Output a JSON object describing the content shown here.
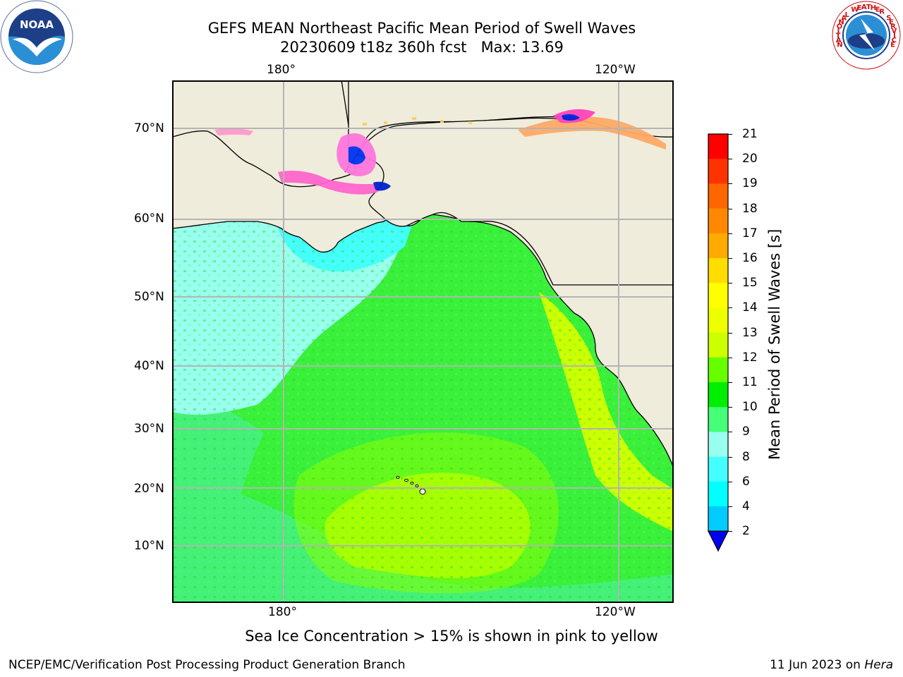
{
  "title": {
    "line1": "GEFS MEAN Northeast Pacific Mean Period of Swell Waves",
    "line2": "20230609 t18z 360h fcst   Max: 13.69"
  },
  "map": {
    "lon_labels_top": [
      "180°",
      "120°W"
    ],
    "lon_labels_bottom": [
      "180°",
      "120°W"
    ],
    "lat_labels": [
      "70°N",
      "60°N",
      "50°N",
      "40°N",
      "30°N",
      "20°N",
      "10°N"
    ],
    "grid": true,
    "land_color": "#efecdc",
    "ocean_dominant_color": "#33ee33"
  },
  "colorbar": {
    "label": "Mean Period of Swell Waves [s]",
    "ticks": [
      "21",
      "20",
      "19",
      "18",
      "17",
      "16",
      "15",
      "14",
      "13",
      "12",
      "11",
      "10",
      "9",
      "8",
      "6",
      "4",
      "2"
    ],
    "colors": [
      "#ff0000",
      "#ff3300",
      "#ff6600",
      "#ff8800",
      "#ffaa00",
      "#ffdd00",
      "#ffff00",
      "#eeff00",
      "#ccff00",
      "#66ff00",
      "#00ee00",
      "#44ff77",
      "#99ffee",
      "#44ffff",
      "#00ffff",
      "#00ccff",
      "#0077ff",
      "#0000ee"
    ],
    "extend": "min"
  },
  "caption": "Sea Ice Concentration > 15% is shown in pink to yellow",
  "footer": {
    "left": "NCEP/EMC/Verification Post Processing Product Generation Branch",
    "right_date": "11 Jun 2023 on ",
    "right_host": "Hera"
  },
  "logos": {
    "noaa_text": "NOAA",
    "nws_text": "NATIONAL WEATHER SERVICE"
  }
}
